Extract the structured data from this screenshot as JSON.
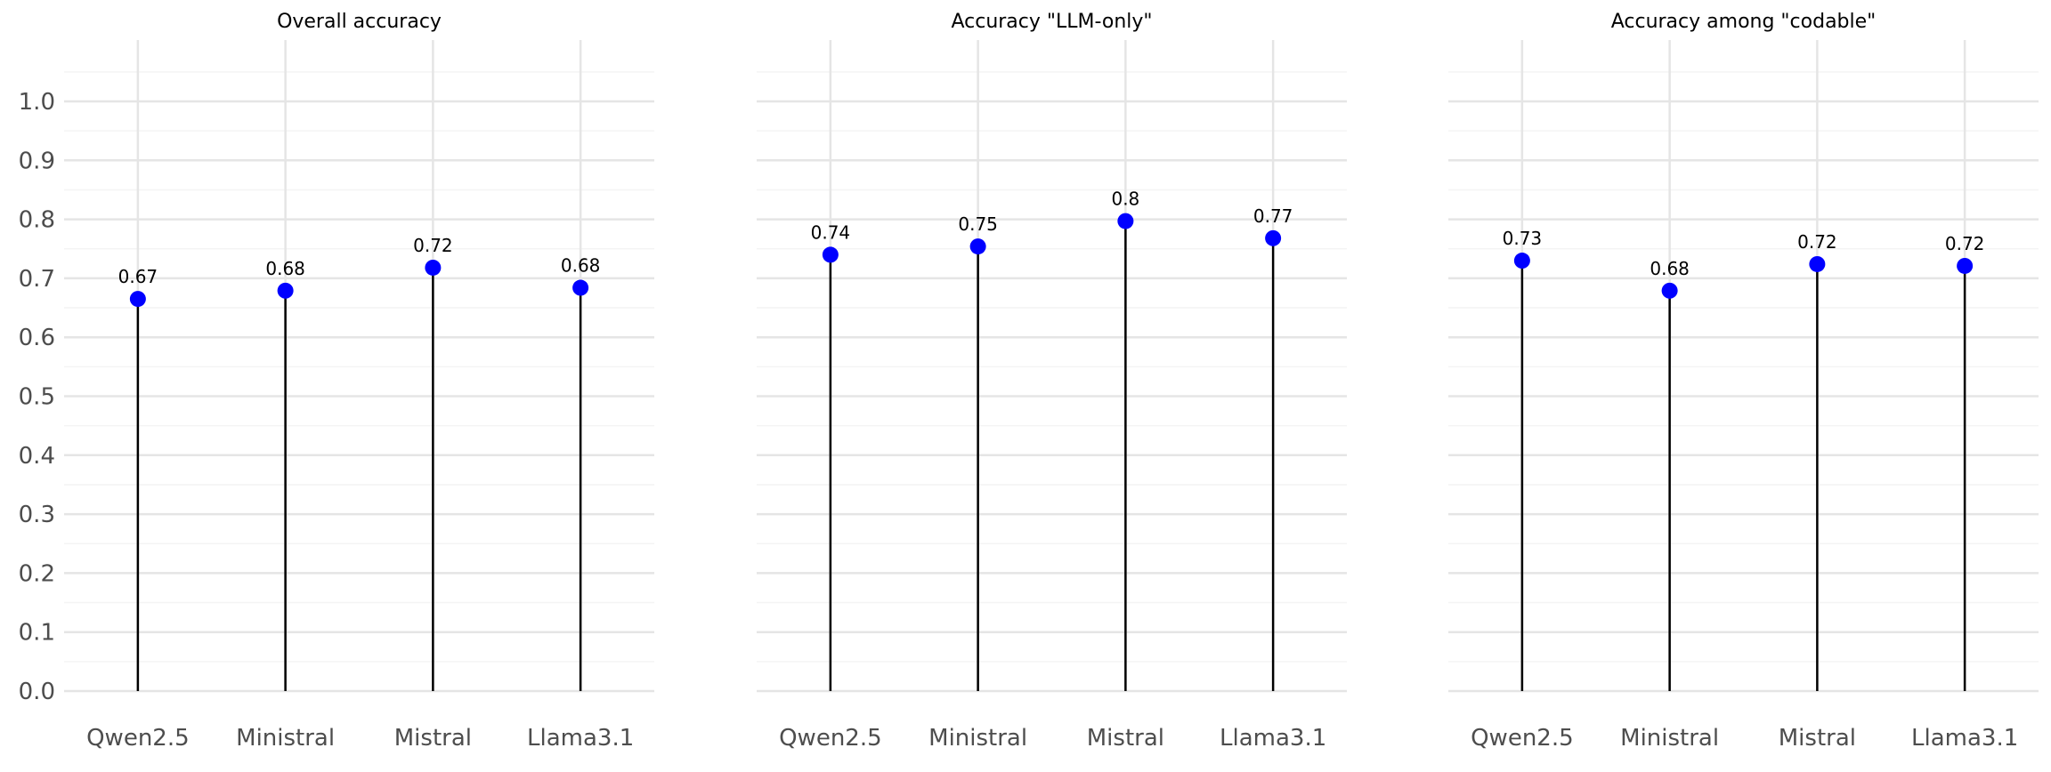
{
  "chart_data": [
    {
      "type": "lollipop",
      "title": "Overall accuracy",
      "categories": [
        "Qwen2.5",
        "Ministral",
        "Mistral",
        "Llama3.1"
      ],
      "values": [
        0.665,
        0.679,
        0.718,
        0.684
      ],
      "value_labels": [
        "0.67",
        "0.68",
        "0.72",
        "0.68"
      ],
      "ylim": [
        0,
        1.1
      ],
      "yticks": [
        "0.0",
        "0.1",
        "0.2",
        "0.3",
        "0.4",
        "0.5",
        "0.6",
        "0.7",
        "0.8",
        "0.9",
        "1.0"
      ],
      "xlabel": "",
      "ylabel": "",
      "grid": true
    },
    {
      "type": "lollipop",
      "title": "Accuracy \"LLM-only\"",
      "categories": [
        "Qwen2.5",
        "Ministral",
        "Mistral",
        "Llama3.1"
      ],
      "values": [
        0.74,
        0.754,
        0.797,
        0.768
      ],
      "value_labels": [
        "0.74",
        "0.75",
        "0.8",
        "0.77"
      ],
      "ylim": [
        0,
        1.1
      ],
      "xlabel": "",
      "ylabel": "",
      "grid": true
    },
    {
      "type": "lollipop",
      "title": "Accuracy among \"codable\"",
      "categories": [
        "Qwen2.5",
        "Ministral",
        "Mistral",
        "Llama3.1"
      ],
      "values": [
        0.73,
        0.679,
        0.724,
        0.721
      ],
      "value_labels": [
        "0.73",
        "0.68",
        "0.72",
        "0.72"
      ],
      "ylim": [
        0,
        1.1
      ],
      "xlabel": "",
      "ylabel": "",
      "grid": true
    }
  ],
  "colors": {
    "marker": "#0000ff",
    "stem": "#000000",
    "grid_major": "#e5e5e5",
    "grid_minor": "#f4f4f4",
    "tick_text": "#4d4d4d",
    "title_text": "#000000"
  }
}
